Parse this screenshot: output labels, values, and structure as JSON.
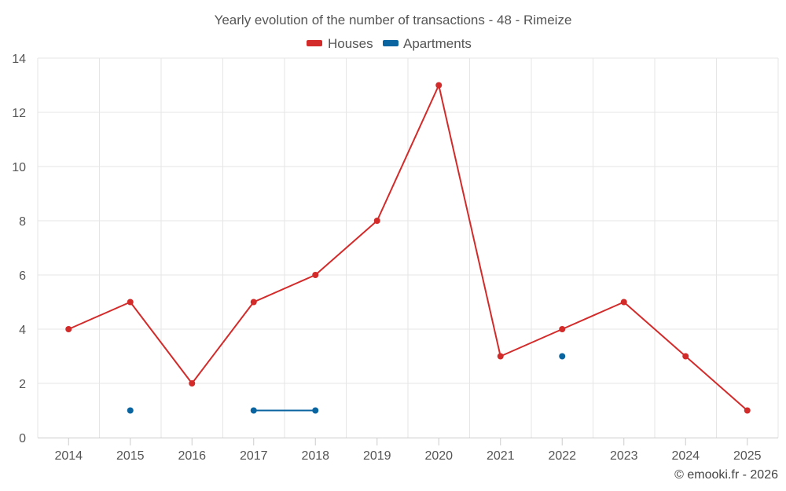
{
  "chart_data": {
    "type": "line",
    "title": "Yearly evolution of the number of transactions - 48 - Rimeize",
    "categories": [
      "2014",
      "2015",
      "2016",
      "2017",
      "2018",
      "2019",
      "2020",
      "2021",
      "2022",
      "2023",
      "2024",
      "2025"
    ],
    "series": [
      {
        "name": "Houses",
        "color": "#d32a2a",
        "values": [
          4,
          5,
          2,
          5,
          6,
          8,
          13,
          3,
          4,
          5,
          3,
          1
        ]
      },
      {
        "name": "Apartments",
        "color": "#0a64a0",
        "values": [
          null,
          1,
          null,
          1,
          1,
          null,
          null,
          null,
          3,
          null,
          null,
          null
        ]
      }
    ],
    "ylim": [
      0,
      14
    ],
    "yticks": [
      "0",
      "2",
      "4",
      "6",
      "8",
      "10",
      "12",
      "14"
    ],
    "xlabel": "",
    "ylabel": "",
    "legend_position": "top-center",
    "grid": true,
    "credit": "© emooki.fr - 2026"
  }
}
